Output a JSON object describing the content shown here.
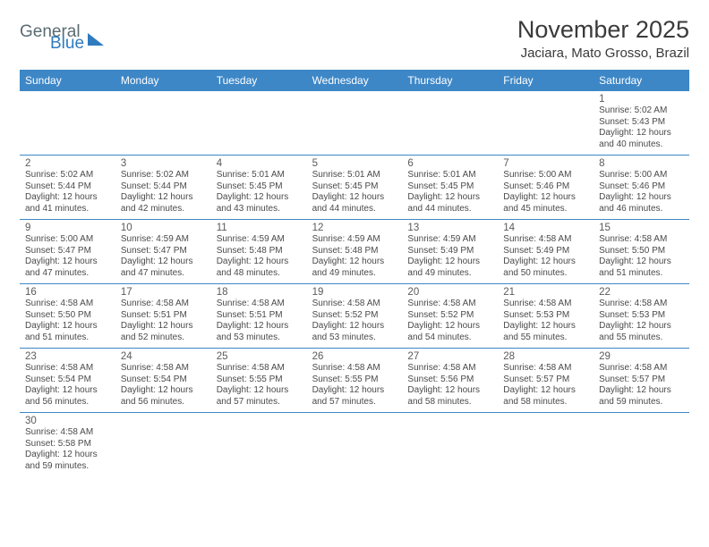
{
  "logo": {
    "part1": "General",
    "part2": "Blue"
  },
  "header": {
    "month_title": "November 2025",
    "location": "Jaciara, Mato Grosso, Brazil"
  },
  "calendar": {
    "weekdays": [
      "Sunday",
      "Monday",
      "Tuesday",
      "Wednesday",
      "Thursday",
      "Friday",
      "Saturday"
    ],
    "header_bg": "#3d87c7",
    "header_text_color": "#ffffff",
    "border_color": "#3d87c7",
    "weeks": [
      [
        null,
        null,
        null,
        null,
        null,
        null,
        {
          "n": "1",
          "sunrise": "5:02 AM",
          "sunset": "5:43 PM",
          "dl_h": "12",
          "dl_m": "40"
        }
      ],
      [
        {
          "n": "2",
          "sunrise": "5:02 AM",
          "sunset": "5:44 PM",
          "dl_h": "12",
          "dl_m": "41"
        },
        {
          "n": "3",
          "sunrise": "5:02 AM",
          "sunset": "5:44 PM",
          "dl_h": "12",
          "dl_m": "42"
        },
        {
          "n": "4",
          "sunrise": "5:01 AM",
          "sunset": "5:45 PM",
          "dl_h": "12",
          "dl_m": "43"
        },
        {
          "n": "5",
          "sunrise": "5:01 AM",
          "sunset": "5:45 PM",
          "dl_h": "12",
          "dl_m": "44"
        },
        {
          "n": "6",
          "sunrise": "5:01 AM",
          "sunset": "5:45 PM",
          "dl_h": "12",
          "dl_m": "44"
        },
        {
          "n": "7",
          "sunrise": "5:00 AM",
          "sunset": "5:46 PM",
          "dl_h": "12",
          "dl_m": "45"
        },
        {
          "n": "8",
          "sunrise": "5:00 AM",
          "sunset": "5:46 PM",
          "dl_h": "12",
          "dl_m": "46"
        }
      ],
      [
        {
          "n": "9",
          "sunrise": "5:00 AM",
          "sunset": "5:47 PM",
          "dl_h": "12",
          "dl_m": "47"
        },
        {
          "n": "10",
          "sunrise": "4:59 AM",
          "sunset": "5:47 PM",
          "dl_h": "12",
          "dl_m": "47"
        },
        {
          "n": "11",
          "sunrise": "4:59 AM",
          "sunset": "5:48 PM",
          "dl_h": "12",
          "dl_m": "48"
        },
        {
          "n": "12",
          "sunrise": "4:59 AM",
          "sunset": "5:48 PM",
          "dl_h": "12",
          "dl_m": "49"
        },
        {
          "n": "13",
          "sunrise": "4:59 AM",
          "sunset": "5:49 PM",
          "dl_h": "12",
          "dl_m": "49"
        },
        {
          "n": "14",
          "sunrise": "4:58 AM",
          "sunset": "5:49 PM",
          "dl_h": "12",
          "dl_m": "50"
        },
        {
          "n": "15",
          "sunrise": "4:58 AM",
          "sunset": "5:50 PM",
          "dl_h": "12",
          "dl_m": "51"
        }
      ],
      [
        {
          "n": "16",
          "sunrise": "4:58 AM",
          "sunset": "5:50 PM",
          "dl_h": "12",
          "dl_m": "51"
        },
        {
          "n": "17",
          "sunrise": "4:58 AM",
          "sunset": "5:51 PM",
          "dl_h": "12",
          "dl_m": "52"
        },
        {
          "n": "18",
          "sunrise": "4:58 AM",
          "sunset": "5:51 PM",
          "dl_h": "12",
          "dl_m": "53"
        },
        {
          "n": "19",
          "sunrise": "4:58 AM",
          "sunset": "5:52 PM",
          "dl_h": "12",
          "dl_m": "53"
        },
        {
          "n": "20",
          "sunrise": "4:58 AM",
          "sunset": "5:52 PM",
          "dl_h": "12",
          "dl_m": "54"
        },
        {
          "n": "21",
          "sunrise": "4:58 AM",
          "sunset": "5:53 PM",
          "dl_h": "12",
          "dl_m": "55"
        },
        {
          "n": "22",
          "sunrise": "4:58 AM",
          "sunset": "5:53 PM",
          "dl_h": "12",
          "dl_m": "55"
        }
      ],
      [
        {
          "n": "23",
          "sunrise": "4:58 AM",
          "sunset": "5:54 PM",
          "dl_h": "12",
          "dl_m": "56"
        },
        {
          "n": "24",
          "sunrise": "4:58 AM",
          "sunset": "5:54 PM",
          "dl_h": "12",
          "dl_m": "56"
        },
        {
          "n": "25",
          "sunrise": "4:58 AM",
          "sunset": "5:55 PM",
          "dl_h": "12",
          "dl_m": "57"
        },
        {
          "n": "26",
          "sunrise": "4:58 AM",
          "sunset": "5:55 PM",
          "dl_h": "12",
          "dl_m": "57"
        },
        {
          "n": "27",
          "sunrise": "4:58 AM",
          "sunset": "5:56 PM",
          "dl_h": "12",
          "dl_m": "58"
        },
        {
          "n": "28",
          "sunrise": "4:58 AM",
          "sunset": "5:57 PM",
          "dl_h": "12",
          "dl_m": "58"
        },
        {
          "n": "29",
          "sunrise": "4:58 AM",
          "sunset": "5:57 PM",
          "dl_h": "12",
          "dl_m": "59"
        }
      ],
      [
        {
          "n": "30",
          "sunrise": "4:58 AM",
          "sunset": "5:58 PM",
          "dl_h": "12",
          "dl_m": "59"
        },
        null,
        null,
        null,
        null,
        null,
        null
      ]
    ],
    "labels": {
      "sunrise_prefix": "Sunrise: ",
      "sunset_prefix": "Sunset: ",
      "daylight_prefix": "Daylight: ",
      "hours_word": " hours",
      "and_word": "and ",
      "minutes_word": " minutes."
    }
  }
}
